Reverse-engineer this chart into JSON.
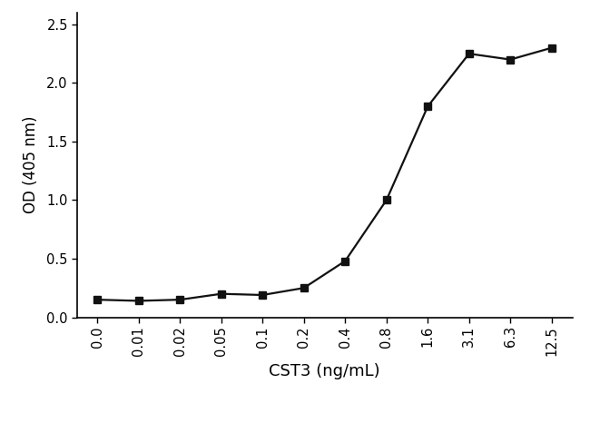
{
  "x_labels": [
    "0.0",
    "0.01",
    "0.02",
    "0.05",
    "0.1",
    "0.2",
    "0.4",
    "0.8",
    "1.6",
    "3.1",
    "6.3",
    "12.5"
  ],
  "x_values": [
    0,
    1,
    2,
    3,
    4,
    5,
    6,
    7,
    8,
    9,
    10,
    11
  ],
  "y_values": [
    0.15,
    0.14,
    0.15,
    0.2,
    0.19,
    0.25,
    0.48,
    1.0,
    1.8,
    2.25,
    2.2,
    2.3
  ],
  "xlabel": "CST3 (ng/mL)",
  "ylabel": "OD (405 nm)",
  "ylim": [
    0.0,
    2.6
  ],
  "yticks": [
    0.0,
    0.5,
    1.0,
    1.5,
    2.0,
    2.5
  ],
  "ytick_labels": [
    "0.0",
    "0.5",
    "1.0",
    "1.5",
    "2.0",
    "2.5"
  ],
  "line_color": "#111111",
  "marker": "s",
  "marker_size": 6,
  "marker_facecolor": "#111111",
  "linewidth": 1.6,
  "background_color": "#ffffff",
  "label_fontsize": 12,
  "tick_fontsize": 10.5,
  "xlabel_fontsize": 13
}
